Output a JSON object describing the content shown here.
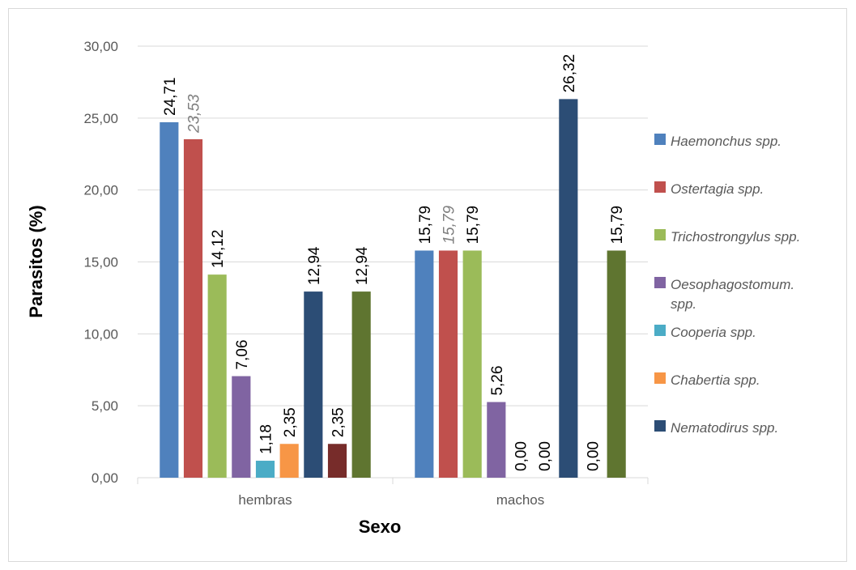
{
  "chart_data": {
    "type": "bar",
    "xlabel": "Sexo",
    "ylabel": "Parasitos (%)",
    "ylim": [
      0,
      30
    ],
    "yticks": [
      "0,00",
      "5,00",
      "10,00",
      "15,00",
      "20,00",
      "25,00",
      "30,00"
    ],
    "grid": true,
    "legend_position": "right",
    "categories": [
      "hembras",
      "machos"
    ],
    "series": [
      {
        "name": "Haemonchus spp.",
        "color": "#4f81bd",
        "values": [
          24.71,
          15.79
        ],
        "labels": [
          "24,71",
          "15,79"
        ]
      },
      {
        "name": "Ostertagia spp.",
        "color": "#c0504d",
        "values": [
          23.53,
          15.79
        ],
        "labels": [
          "23,53",
          "15,79"
        ]
      },
      {
        "name": "Trichostrongylus spp.",
        "color": "#9bbb59",
        "values": [
          14.12,
          15.79
        ],
        "labels": [
          "14,12",
          "15,79"
        ]
      },
      {
        "name": "Oesophagostomum. spp.",
        "color": "#8064a2",
        "values": [
          7.06,
          5.26
        ],
        "labels": [
          "7,06",
          "5,26"
        ]
      },
      {
        "name": "Cooperia spp.",
        "color": "#4bacc6",
        "values": [
          1.18,
          0.0
        ],
        "labels": [
          "1,18",
          "0,00"
        ]
      },
      {
        "name": "Chabertia spp.",
        "color": "#f79646",
        "values": [
          2.35,
          0.0
        ],
        "labels": [
          "2,35",
          "0,00"
        ]
      },
      {
        "name": "Nematodirus spp.",
        "color": "#2c4d75",
        "values": [
          12.94,
          26.32
        ],
        "labels": [
          "12,94",
          "26,32"
        ]
      },
      {
        "color": "#772c2a",
        "values": [
          2.35,
          0.0
        ],
        "labels": [
          "2,35",
          "0,00"
        ]
      },
      {
        "color": "#5f7530",
        "values": [
          12.94,
          15.79
        ],
        "labels": [
          "12,94",
          "15,79"
        ]
      }
    ]
  }
}
